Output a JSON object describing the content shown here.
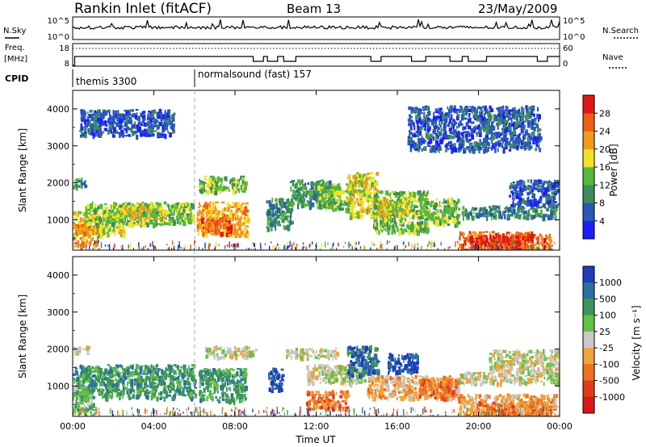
{
  "header": {
    "station": "Rankin Inlet (fitACF)",
    "beam": "Beam 13",
    "date": "23/May/2009"
  },
  "summary_panels": {
    "nsky_label": "N.Sky",
    "nsky_ticks": [
      "10^5",
      "10^0"
    ],
    "nsearch_label": "N.Search",
    "nsearch_ticks": [
      "10^5",
      "10^0"
    ],
    "freq_label_1": "Freq.",
    "freq_label_2": "[MHz]",
    "freq_ticks": [
      "18",
      "8"
    ],
    "nave_label": "Nave",
    "nave_ticks": [
      "60",
      "0"
    ],
    "cpid_label": "CPID",
    "cpid_segments": [
      {
        "label": "themis 3300",
        "start_hour": 0
      },
      {
        "label": "normalsound (fast) 157",
        "start_hour": 6
      }
    ]
  },
  "chart_data": [
    {
      "type": "heatmap",
      "panel": "power",
      "ylabel": "Slant Range [km]",
      "xlabel": "",
      "x_ticks": [
        "00:00",
        "04:00",
        "08:00",
        "12:00",
        "16:00",
        "20:00",
        "00:00"
      ],
      "xlim_hours": [
        0,
        24
      ],
      "y_ticks": [
        1000,
        2000,
        3000,
        4000
      ],
      "ylim": [
        180,
        4500
      ],
      "colorbar_label": "Power [dB]",
      "colorbar_ticks": [
        "4",
        "8",
        "12",
        "16",
        "20",
        "24",
        "28"
      ],
      "colors": [
        "#1d1dff",
        "#2a59b7",
        "#3d8c5a",
        "#57b83a",
        "#f2e227",
        "#f49a1a",
        "#ee5f13",
        "#e01616"
      ],
      "regions": [
        {
          "t0": 0.0,
          "t1": 2.5,
          "r0": 600,
          "r1": 1300,
          "level": 4
        },
        {
          "t0": 0.0,
          "t1": 1.2,
          "r0": 300,
          "r1": 900,
          "level": 5
        },
        {
          "t0": 0.0,
          "t1": 0.6,
          "r0": 1900,
          "r1": 2150,
          "level": 2
        },
        {
          "t0": 0.6,
          "t1": 5.9,
          "r0": 900,
          "r1": 1500,
          "level": 3
        },
        {
          "t0": 2.0,
          "t1": 4.5,
          "r0": 1050,
          "r1": 1400,
          "level": 4
        },
        {
          "t0": 6.1,
          "t1": 8.6,
          "r0": 600,
          "r1": 1500,
          "level": 5
        },
        {
          "t0": 6.2,
          "t1": 8.5,
          "r0": 1800,
          "r1": 2200,
          "level": 3
        },
        {
          "t0": 6.3,
          "t1": 7.8,
          "r0": 650,
          "r1": 1100,
          "level": 6
        },
        {
          "t0": 9.5,
          "t1": 10.8,
          "r0": 800,
          "r1": 1600,
          "level": 2
        },
        {
          "t0": 10.7,
          "t1": 12.8,
          "r0": 1400,
          "r1": 2100,
          "level": 2
        },
        {
          "t0": 12.0,
          "t1": 13.8,
          "r0": 1300,
          "r1": 2000,
          "level": 3
        },
        {
          "t0": 13.5,
          "t1": 15.0,
          "r0": 1100,
          "r1": 2300,
          "level": 4
        },
        {
          "t0": 14.8,
          "t1": 17.5,
          "r0": 700,
          "r1": 1800,
          "level": 3
        },
        {
          "t0": 15.0,
          "t1": 16.5,
          "r0": 1100,
          "r1": 1600,
          "level": 4
        },
        {
          "t0": 17.3,
          "t1": 19.0,
          "r0": 900,
          "r1": 1600,
          "level": 3
        },
        {
          "t0": 18.8,
          "t1": 23.8,
          "r0": 1100,
          "r1": 1400,
          "level": 2
        },
        {
          "t0": 19.0,
          "t1": 23.5,
          "r0": 200,
          "r1": 700,
          "level": 6
        },
        {
          "t0": 19.5,
          "t1": 22.5,
          "r0": 250,
          "r1": 600,
          "level": 7
        },
        {
          "t0": 21.5,
          "t1": 24.0,
          "r0": 1400,
          "r1": 2100,
          "level": 1
        },
        {
          "t0": 0.3,
          "t1": 5.0,
          "r0": 3300,
          "r1": 4000,
          "level": 1
        },
        {
          "t0": 16.5,
          "t1": 23.0,
          "r0": 2900,
          "r1": 4100,
          "level": 1
        }
      ]
    },
    {
      "type": "heatmap",
      "panel": "velocity",
      "ylabel": "Slant Range [km]",
      "xlabel": "Time UT",
      "x_ticks": [
        "00:00",
        "04:00",
        "08:00",
        "12:00",
        "16:00",
        "20:00",
        "00:00"
      ],
      "xlim_hours": [
        0,
        24
      ],
      "y_ticks": [
        1000,
        2000,
        3000,
        4000
      ],
      "ylim": [
        180,
        4500
      ],
      "colorbar_label": "Velocity [m s⁻¹]",
      "colorbar_ticks": [
        "1000",
        "500",
        "100",
        "25",
        "-25",
        "-100",
        "-500",
        "-1000"
      ],
      "colors": [
        "#1c3fb8",
        "#2b6fa5",
        "#3e9458",
        "#62c245",
        "#c8c8c8",
        "#f0a33a",
        "#ee7020",
        "#e23a1a",
        "#e01616"
      ],
      "regions": [
        {
          "t0": 0.0,
          "t1": 6.0,
          "r0": 700,
          "r1": 1600,
          "level": 2
        },
        {
          "t0": 0.0,
          "t1": 1.0,
          "r0": 300,
          "r1": 1000,
          "level": 3
        },
        {
          "t0": 0.0,
          "t1": 0.7,
          "r0": 1900,
          "r1": 2100,
          "level": 4
        },
        {
          "t0": 6.2,
          "t1": 8.5,
          "r0": 600,
          "r1": 1500,
          "level": 2
        },
        {
          "t0": 6.5,
          "t1": 9.0,
          "r0": 1800,
          "r1": 2100,
          "level": 4
        },
        {
          "t0": 9.6,
          "t1": 10.3,
          "r0": 900,
          "r1": 1500,
          "level": 0
        },
        {
          "t0": 10.5,
          "t1": 13.0,
          "r0": 1800,
          "r1": 2050,
          "level": 4
        },
        {
          "t0": 11.5,
          "t1": 14.5,
          "r0": 1100,
          "r1": 1600,
          "level": 4
        },
        {
          "t0": 11.5,
          "t1": 13.5,
          "r0": 400,
          "r1": 900,
          "level": 6
        },
        {
          "t0": 13.5,
          "t1": 15.0,
          "r0": 1300,
          "r1": 2100,
          "level": 1
        },
        {
          "t0": 15.5,
          "t1": 17.0,
          "r0": 1400,
          "r1": 1900,
          "level": 0
        },
        {
          "t0": 14.5,
          "t1": 19.0,
          "r0": 700,
          "r1": 1300,
          "level": 5
        },
        {
          "t0": 17.0,
          "t1": 19.0,
          "r0": 700,
          "r1": 1200,
          "level": 6
        },
        {
          "t0": 19.0,
          "t1": 24.0,
          "r0": 1100,
          "r1": 1400,
          "level": 4
        },
        {
          "t0": 19.0,
          "t1": 23.8,
          "r0": 200,
          "r1": 800,
          "level": 5
        },
        {
          "t0": 20.0,
          "t1": 23.5,
          "r0": 200,
          "r1": 600,
          "level": 6
        },
        {
          "t0": 20.5,
          "t1": 24.0,
          "r0": 1400,
          "r1": 2000,
          "level": 4
        }
      ]
    }
  ]
}
